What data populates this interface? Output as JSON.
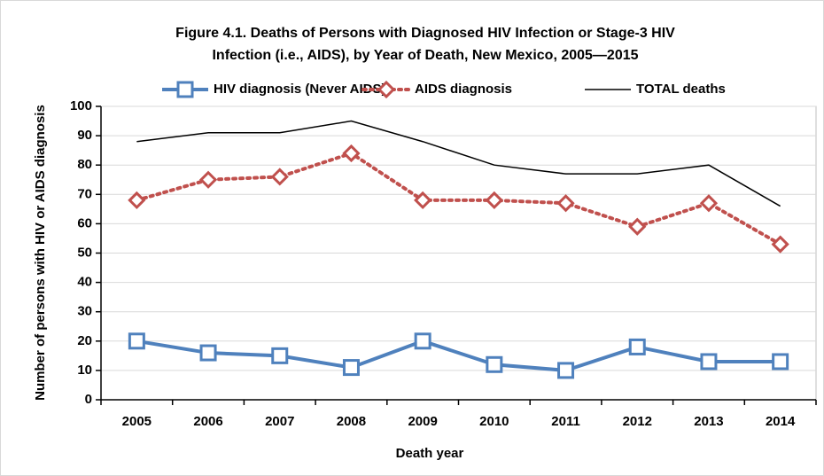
{
  "chart_data": {
    "type": "line",
    "title": [
      "Figure 4.1. Deaths of Persons with Diagnosed HIV Infection or Stage-3 HIV",
      "Infection (i.e., AIDS), by Year of Death, New Mexico, 2005—2015"
    ],
    "x_label": "Death year",
    "y_label": "Number of persons with HIV or AIDS diagnosis",
    "categories": [
      "2005",
      "2006",
      "2007",
      "2008",
      "2009",
      "2010",
      "2011",
      "2012",
      "2013",
      "2014"
    ],
    "series": [
      {
        "name": "HIV diagnosis (Never AIDS)",
        "color": "#4f81bd",
        "marker": "square",
        "dash": "solid",
        "values": [
          20,
          16,
          15,
          11,
          20,
          12,
          10,
          18,
          13,
          13
        ]
      },
      {
        "name": "AIDS diagnosis",
        "color": "#c0504d",
        "marker": "diamond",
        "dash": "dotted",
        "values": [
          68,
          75,
          76,
          84,
          68,
          68,
          67,
          59,
          67,
          53
        ]
      },
      {
        "name": "TOTAL deaths",
        "color": "#000000",
        "marker": null,
        "dash": "solid",
        "values": [
          88,
          91,
          91,
          95,
          88,
          80,
          77,
          77,
          80,
          66
        ]
      }
    ],
    "ylim": [
      0,
      100
    ],
    "yticks": [
      0,
      10,
      20,
      30,
      40,
      50,
      60,
      70,
      80,
      90,
      100
    ],
    "grid": true
  }
}
